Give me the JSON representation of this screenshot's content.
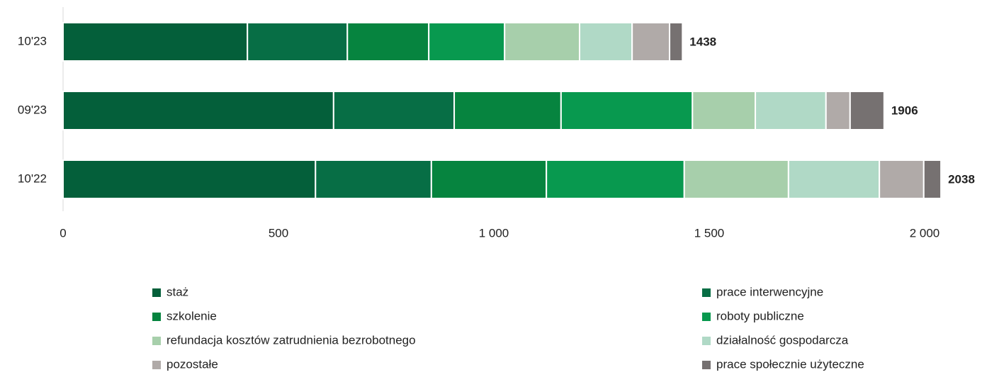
{
  "chart_data": {
    "type": "stacked_barh",
    "categories": [
      "10'23",
      "09'23",
      "10'22"
    ],
    "series": [
      {
        "name": "staż",
        "color": "#045f3a",
        "values": [
          428,
          628,
          586
        ]
      },
      {
        "name": "prace interwencyjne",
        "color": "#076e45",
        "values": [
          232,
          280,
          269
        ]
      },
      {
        "name": "szkolenie",
        "color": "#06843f",
        "values": [
          189,
          248,
          267
        ]
      },
      {
        "name": "roboty publiczne",
        "color": "#08994f",
        "values": [
          176,
          305,
          320
        ]
      },
      {
        "name": "refundacja kosztów zatrudnienia bezrobotnego",
        "color": "#a7cfab",
        "values": [
          174,
          146,
          242
        ]
      },
      {
        "name": "działalność gospodarcza",
        "color": "#b0d9c6",
        "values": [
          122,
          164,
          211
        ]
      },
      {
        "name": "pozostałe",
        "color": "#b0aaa8",
        "values": [
          87,
          56,
          103
        ]
      },
      {
        "name": "prace społecznie użyteczne",
        "color": "#767171",
        "values": [
          30,
          79,
          40
        ]
      }
    ],
    "totals": [
      1438,
      1906,
      2038
    ],
    "xlim": [
      0,
      2000
    ],
    "xticks": [
      0,
      500,
      {
        "value": 1000,
        "label": "1 000"
      },
      {
        "value": 1500,
        "label": "1 500"
      },
      {
        "value": 2000,
        "label": "2 000"
      }
    ],
    "legend": "bottom"
  }
}
